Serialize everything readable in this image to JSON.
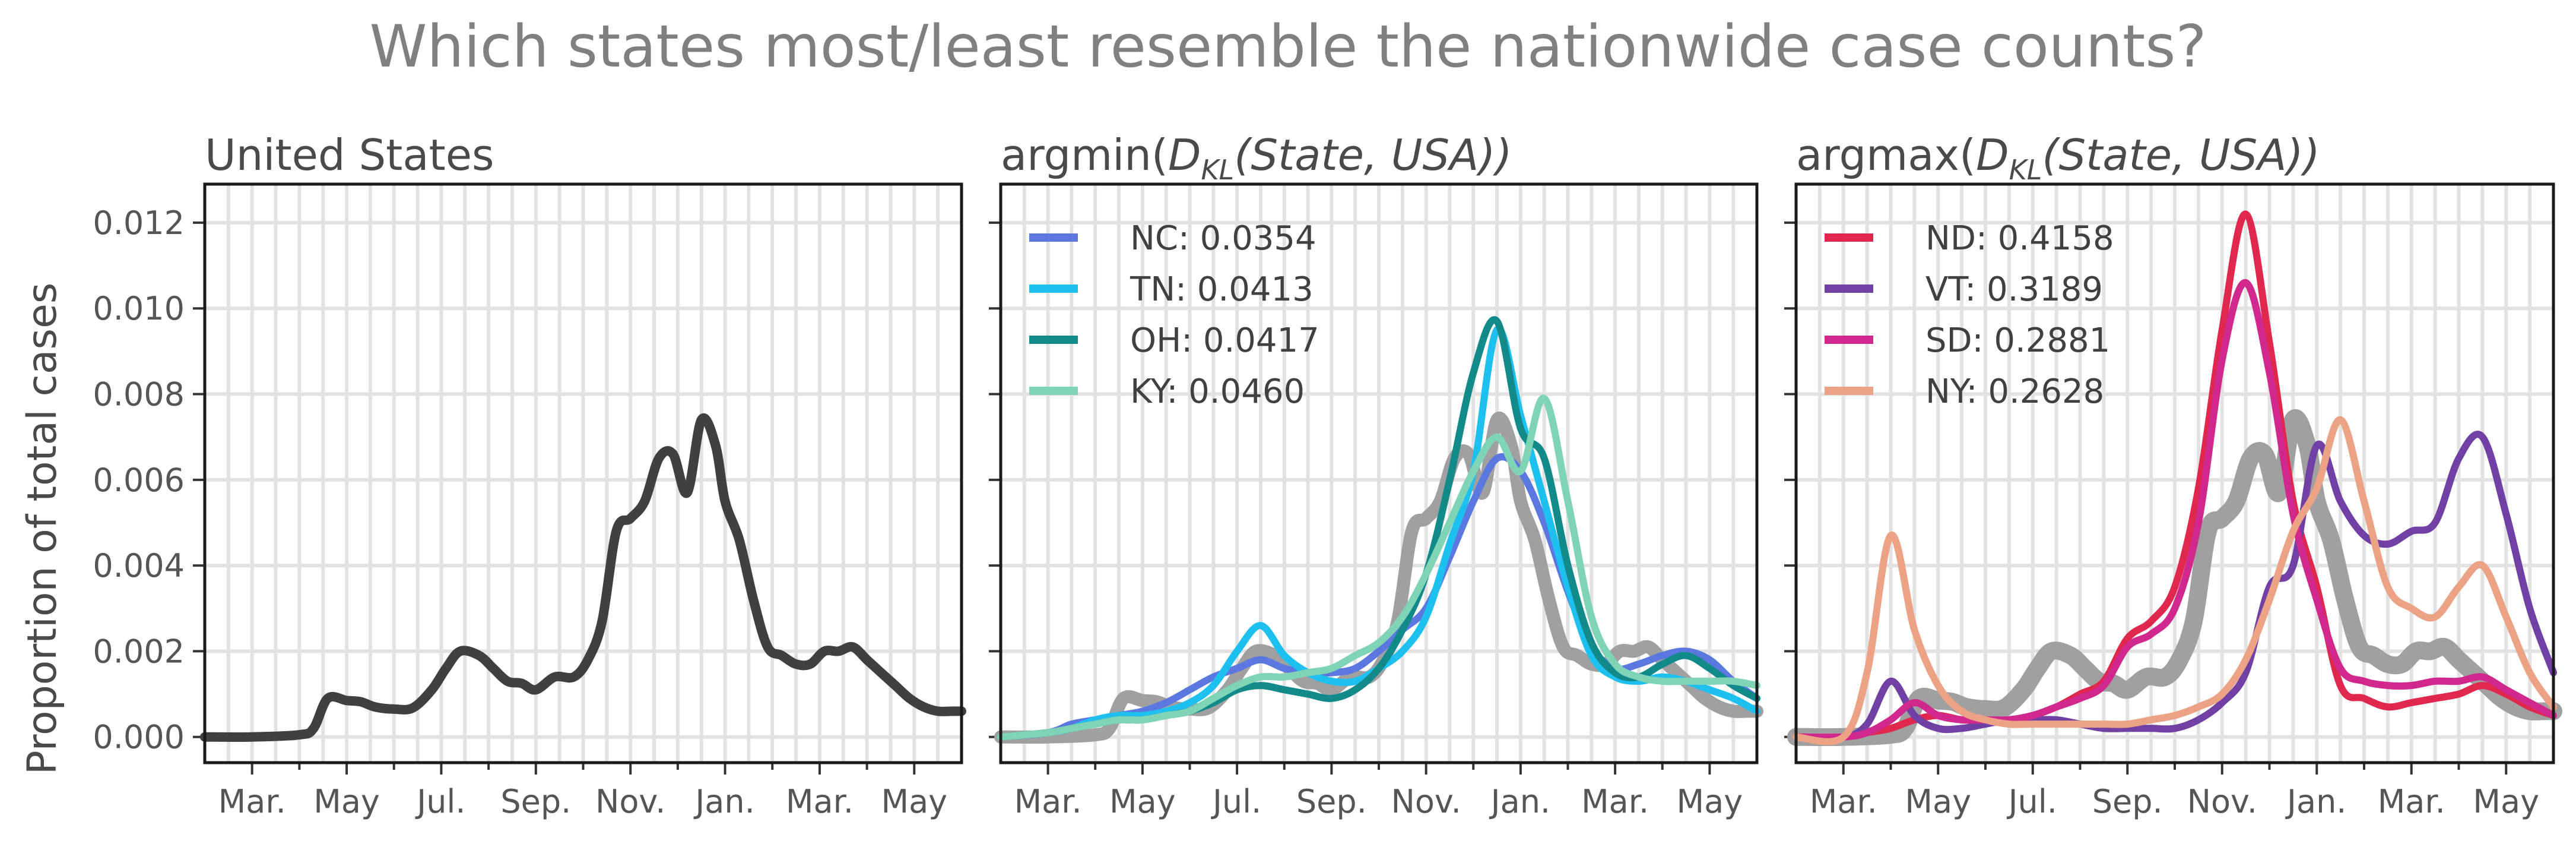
{
  "figure_title": "Which states most/least resemble the nationwide case counts?",
  "y_label": "Proportion of total cases",
  "colors": {
    "usa": "#404040",
    "usa_ref": "#a0a0a0",
    "NC": "#5b78e0",
    "TN": "#1ec0f0",
    "OH": "#128a8a",
    "KY": "#80d4b6",
    "ND": "#e0284f",
    "VT": "#7040a4",
    "SD": "#d0288c",
    "NY": "#eca284"
  },
  "chart_data": [
    {
      "type": "line",
      "title": "United States",
      "x_ticks": [
        "Mar.",
        "May",
        "Jul.",
        "Sep.",
        "Nov.",
        "Jan.",
        "Mar.",
        "May"
      ],
      "ylim": [
        -0.0006,
        0.0129
      ],
      "y_ticks": [
        "0.000",
        "0.002",
        "0.004",
        "0.006",
        "0.008",
        "0.010",
        "0.012"
      ],
      "grid": true,
      "x": [
        0,
        1,
        2,
        2.3,
        2.6,
        3,
        3.3,
        3.6,
        4,
        4.4,
        4.8,
        5.1,
        5.4,
        5.8,
        6.1,
        6.4,
        6.7,
        7,
        7.4,
        7.8,
        8.1,
        8.4,
        8.7,
        9,
        9.3,
        9.6,
        9.9,
        10.2,
        10.5,
        10.8,
        11,
        11.3,
        11.6,
        11.9,
        12.2,
        12.5,
        12.8,
        13.1,
        13.4,
        13.7,
        14,
        14.3,
        14.6,
        14.9,
        15.2,
        15.5,
        15.8,
        16
      ],
      "series": [
        {
          "key": "USA",
          "values": [
            0,
            0,
            5e-05,
            0.0002,
            0.0009,
            0.00085,
            0.00082,
            0.0007,
            0.00065,
            0.00068,
            0.0011,
            0.0016,
            0.002,
            0.0019,
            0.0016,
            0.0013,
            0.00125,
            0.0011,
            0.0014,
            0.0014,
            0.0018,
            0.0027,
            0.0048,
            0.0051,
            0.0055,
            0.0065,
            0.0066,
            0.0057,
            0.0074,
            0.0068,
            0.0055,
            0.0046,
            0.0032,
            0.0021,
            0.0019,
            0.0017,
            0.0017,
            0.002,
            0.002,
            0.0021,
            0.0018,
            0.0015,
            0.0012,
            0.0009,
            0.0007,
            0.0006,
            0.0006,
            0.0006
          ]
        }
      ]
    },
    {
      "type": "line",
      "title_parts": [
        "argmin(",
        "D",
        "KL",
        "(State, USA))"
      ],
      "x_ticks": [
        "Mar.",
        "May",
        "Jul.",
        "Sep.",
        "Nov.",
        "Jan.",
        "Mar.",
        "May"
      ],
      "ylim": [
        -0.0006,
        0.0129
      ],
      "grid": true,
      "legend": "top-left",
      "x": [
        0,
        1,
        1.5,
        2,
        2.5,
        3,
        3.5,
        4,
        4.5,
        5,
        5.5,
        6,
        6.5,
        7,
        7.5,
        8,
        8.5,
        9,
        9.5,
        10,
        10.5,
        11,
        11.5,
        12,
        12.5,
        13,
        13.5,
        14,
        14.5,
        15,
        15.5,
        16
      ],
      "series": [
        {
          "key": "NC",
          "label": "NC: 0.0354",
          "values": [
            0,
            0.0001,
            0.0003,
            0.0004,
            0.0005,
            0.0006,
            0.0008,
            0.0011,
            0.0014,
            0.0016,
            0.0018,
            0.0016,
            0.0015,
            0.0015,
            0.0016,
            0.002,
            0.0025,
            0.003,
            0.0042,
            0.0055,
            0.0065,
            0.0062,
            0.005,
            0.0034,
            0.0021,
            0.0016,
            0.0017,
            0.0019,
            0.002,
            0.0018,
            0.0013,
            0.0009
          ]
        },
        {
          "key": "TN",
          "label": "TN: 0.0413",
          "values": [
            0,
            0.0001,
            0.0002,
            0.0004,
            0.0005,
            0.0005,
            0.0006,
            0.0008,
            0.0012,
            0.002,
            0.0026,
            0.0019,
            0.0015,
            0.0013,
            0.0013,
            0.0016,
            0.002,
            0.0028,
            0.0045,
            0.0062,
            0.0095,
            0.0075,
            0.0055,
            0.0035,
            0.0019,
            0.0014,
            0.0013,
            0.0014,
            0.0013,
            0.0011,
            0.0009,
            0.0006
          ]
        },
        {
          "key": "OH",
          "label": "OH: 0.0417",
          "values": [
            0,
            0.0001,
            0.0002,
            0.0003,
            0.0004,
            0.0004,
            0.0005,
            0.0006,
            0.0008,
            0.0011,
            0.0012,
            0.0011,
            0.001,
            0.0009,
            0.0011,
            0.0016,
            0.0025,
            0.0038,
            0.006,
            0.0085,
            0.0097,
            0.0072,
            0.0065,
            0.004,
            0.0022,
            0.0015,
            0.0014,
            0.0017,
            0.0019,
            0.0016,
            0.0012,
            0.0009
          ]
        },
        {
          "key": "KY",
          "label": "KY: 0.0460",
          "values": [
            0,
            0.0001,
            0.0002,
            0.0003,
            0.0004,
            0.0004,
            0.0005,
            0.0006,
            0.0009,
            0.0012,
            0.0014,
            0.0014,
            0.0015,
            0.0016,
            0.0019,
            0.0022,
            0.0028,
            0.0038,
            0.005,
            0.0062,
            0.007,
            0.0062,
            0.0079,
            0.0055,
            0.0028,
            0.0017,
            0.0014,
            0.0013,
            0.0013,
            0.0013,
            0.0013,
            0.0012
          ]
        }
      ]
    },
    {
      "type": "line",
      "title_parts": [
        "argmax(",
        "D",
        "KL",
        "(State, USA))"
      ],
      "x_ticks": [
        "Mar.",
        "May",
        "Jul.",
        "Sep.",
        "Nov.",
        "Jan.",
        "Mar.",
        "May"
      ],
      "ylim": [
        -0.0006,
        0.0129
      ],
      "grid": true,
      "legend": "top-left",
      "x": [
        0,
        1,
        1.5,
        2,
        2.5,
        3,
        3.5,
        4,
        4.5,
        5,
        5.5,
        6,
        6.5,
        7,
        7.5,
        8,
        8.5,
        9,
        9.5,
        10,
        10.5,
        11,
        11.5,
        12,
        12.5,
        13,
        13.5,
        14,
        14.5,
        15,
        15.5,
        16
      ],
      "series": [
        {
          "key": "ND",
          "label": "ND: 0.4158",
          "values": [
            0,
            0,
            0.0001,
            0.0002,
            0.0004,
            0.0005,
            0.0004,
            0.0004,
            0.0004,
            0.0005,
            0.0007,
            0.001,
            0.0013,
            0.0023,
            0.0027,
            0.0035,
            0.0058,
            0.0095,
            0.0122,
            0.0092,
            0.0055,
            0.0035,
            0.0012,
            0.0009,
            0.0007,
            0.0008,
            0.0009,
            0.001,
            0.0012,
            0.001,
            0.0007,
            0.0005
          ]
        },
        {
          "key": "VT",
          "label": "VT: 0.3189",
          "values": [
            0,
            0,
            0.0003,
            0.0013,
            0.0005,
            0.0002,
            0.0002,
            0.0003,
            0.0004,
            0.0004,
            0.0004,
            0.0003,
            0.0002,
            0.0002,
            0.0002,
            0.0002,
            0.0004,
            0.0008,
            0.0015,
            0.0035,
            0.004,
            0.0068,
            0.0055,
            0.0047,
            0.0045,
            0.0048,
            0.005,
            0.0065,
            0.007,
            0.0052,
            0.003,
            0.0015
          ]
        },
        {
          "key": "SD",
          "label": "SD: 0.2881",
          "values": [
            0,
            0,
            0.0001,
            0.0004,
            0.0008,
            0.0005,
            0.0004,
            0.0004,
            0.0004,
            0.0005,
            0.0007,
            0.0009,
            0.0012,
            0.0021,
            0.0024,
            0.003,
            0.005,
            0.0088,
            0.0106,
            0.0085,
            0.0052,
            0.0032,
            0.0016,
            0.0013,
            0.0012,
            0.0012,
            0.0013,
            0.0013,
            0.0014,
            0.0011,
            0.0008,
            0.0005
          ]
        },
        {
          "key": "NY",
          "label": "NY: 0.2628",
          "values": [
            0,
            0,
            0.0015,
            0.0047,
            0.0025,
            0.0012,
            0.0006,
            0.0004,
            0.0003,
            0.0003,
            0.0003,
            0.0003,
            0.0003,
            0.0003,
            0.0004,
            0.0005,
            0.0007,
            0.001,
            0.0018,
            0.0032,
            0.0048,
            0.0058,
            0.0074,
            0.0055,
            0.0035,
            0.003,
            0.0028,
            0.0035,
            0.004,
            0.0028,
            0.0015,
            0.0007
          ]
        }
      ]
    }
  ]
}
